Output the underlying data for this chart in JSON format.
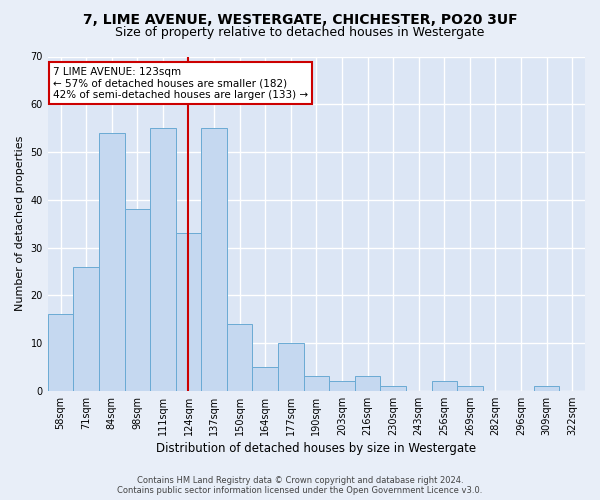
{
  "title1": "7, LIME AVENUE, WESTERGATE, CHICHESTER, PO20 3UF",
  "title2": "Size of property relative to detached houses in Westergate",
  "xlabel": "Distribution of detached houses by size in Westergate",
  "ylabel": "Number of detached properties",
  "categories": [
    "58sqm",
    "71sqm",
    "84sqm",
    "98sqm",
    "111sqm",
    "124sqm",
    "137sqm",
    "150sqm",
    "164sqm",
    "177sqm",
    "190sqm",
    "203sqm",
    "216sqm",
    "230sqm",
    "243sqm",
    "256sqm",
    "269sqm",
    "282sqm",
    "296sqm",
    "309sqm",
    "322sqm"
  ],
  "values": [
    16,
    26,
    54,
    38,
    55,
    33,
    55,
    14,
    5,
    10,
    3,
    2,
    3,
    1,
    0,
    2,
    1,
    0,
    0,
    1,
    0
  ],
  "bar_color": "#c5d8f0",
  "bar_edge_color": "#6aaad4",
  "vline_x": 5,
  "vline_color": "#cc0000",
  "ylim": [
    0,
    70
  ],
  "yticks": [
    0,
    10,
    20,
    30,
    40,
    50,
    60,
    70
  ],
  "annotation_text": "7 LIME AVENUE: 123sqm\n← 57% of detached houses are smaller (182)\n42% of semi-detached houses are larger (133) →",
  "annotation_box_color": "#ffffff",
  "annotation_box_edge": "#cc0000",
  "footer1": "Contains HM Land Registry data © Crown copyright and database right 2024.",
  "footer2": "Contains public sector information licensed under the Open Government Licence v3.0.",
  "bg_color": "#e8eef8",
  "plot_bg_color": "#dce6f5",
  "grid_color": "#ffffff",
  "title1_fontsize": 10,
  "title2_fontsize": 9,
  "xlabel_fontsize": 8.5,
  "ylabel_fontsize": 8,
  "tick_fontsize": 7,
  "ann_fontsize": 7.5,
  "footer_fontsize": 6
}
